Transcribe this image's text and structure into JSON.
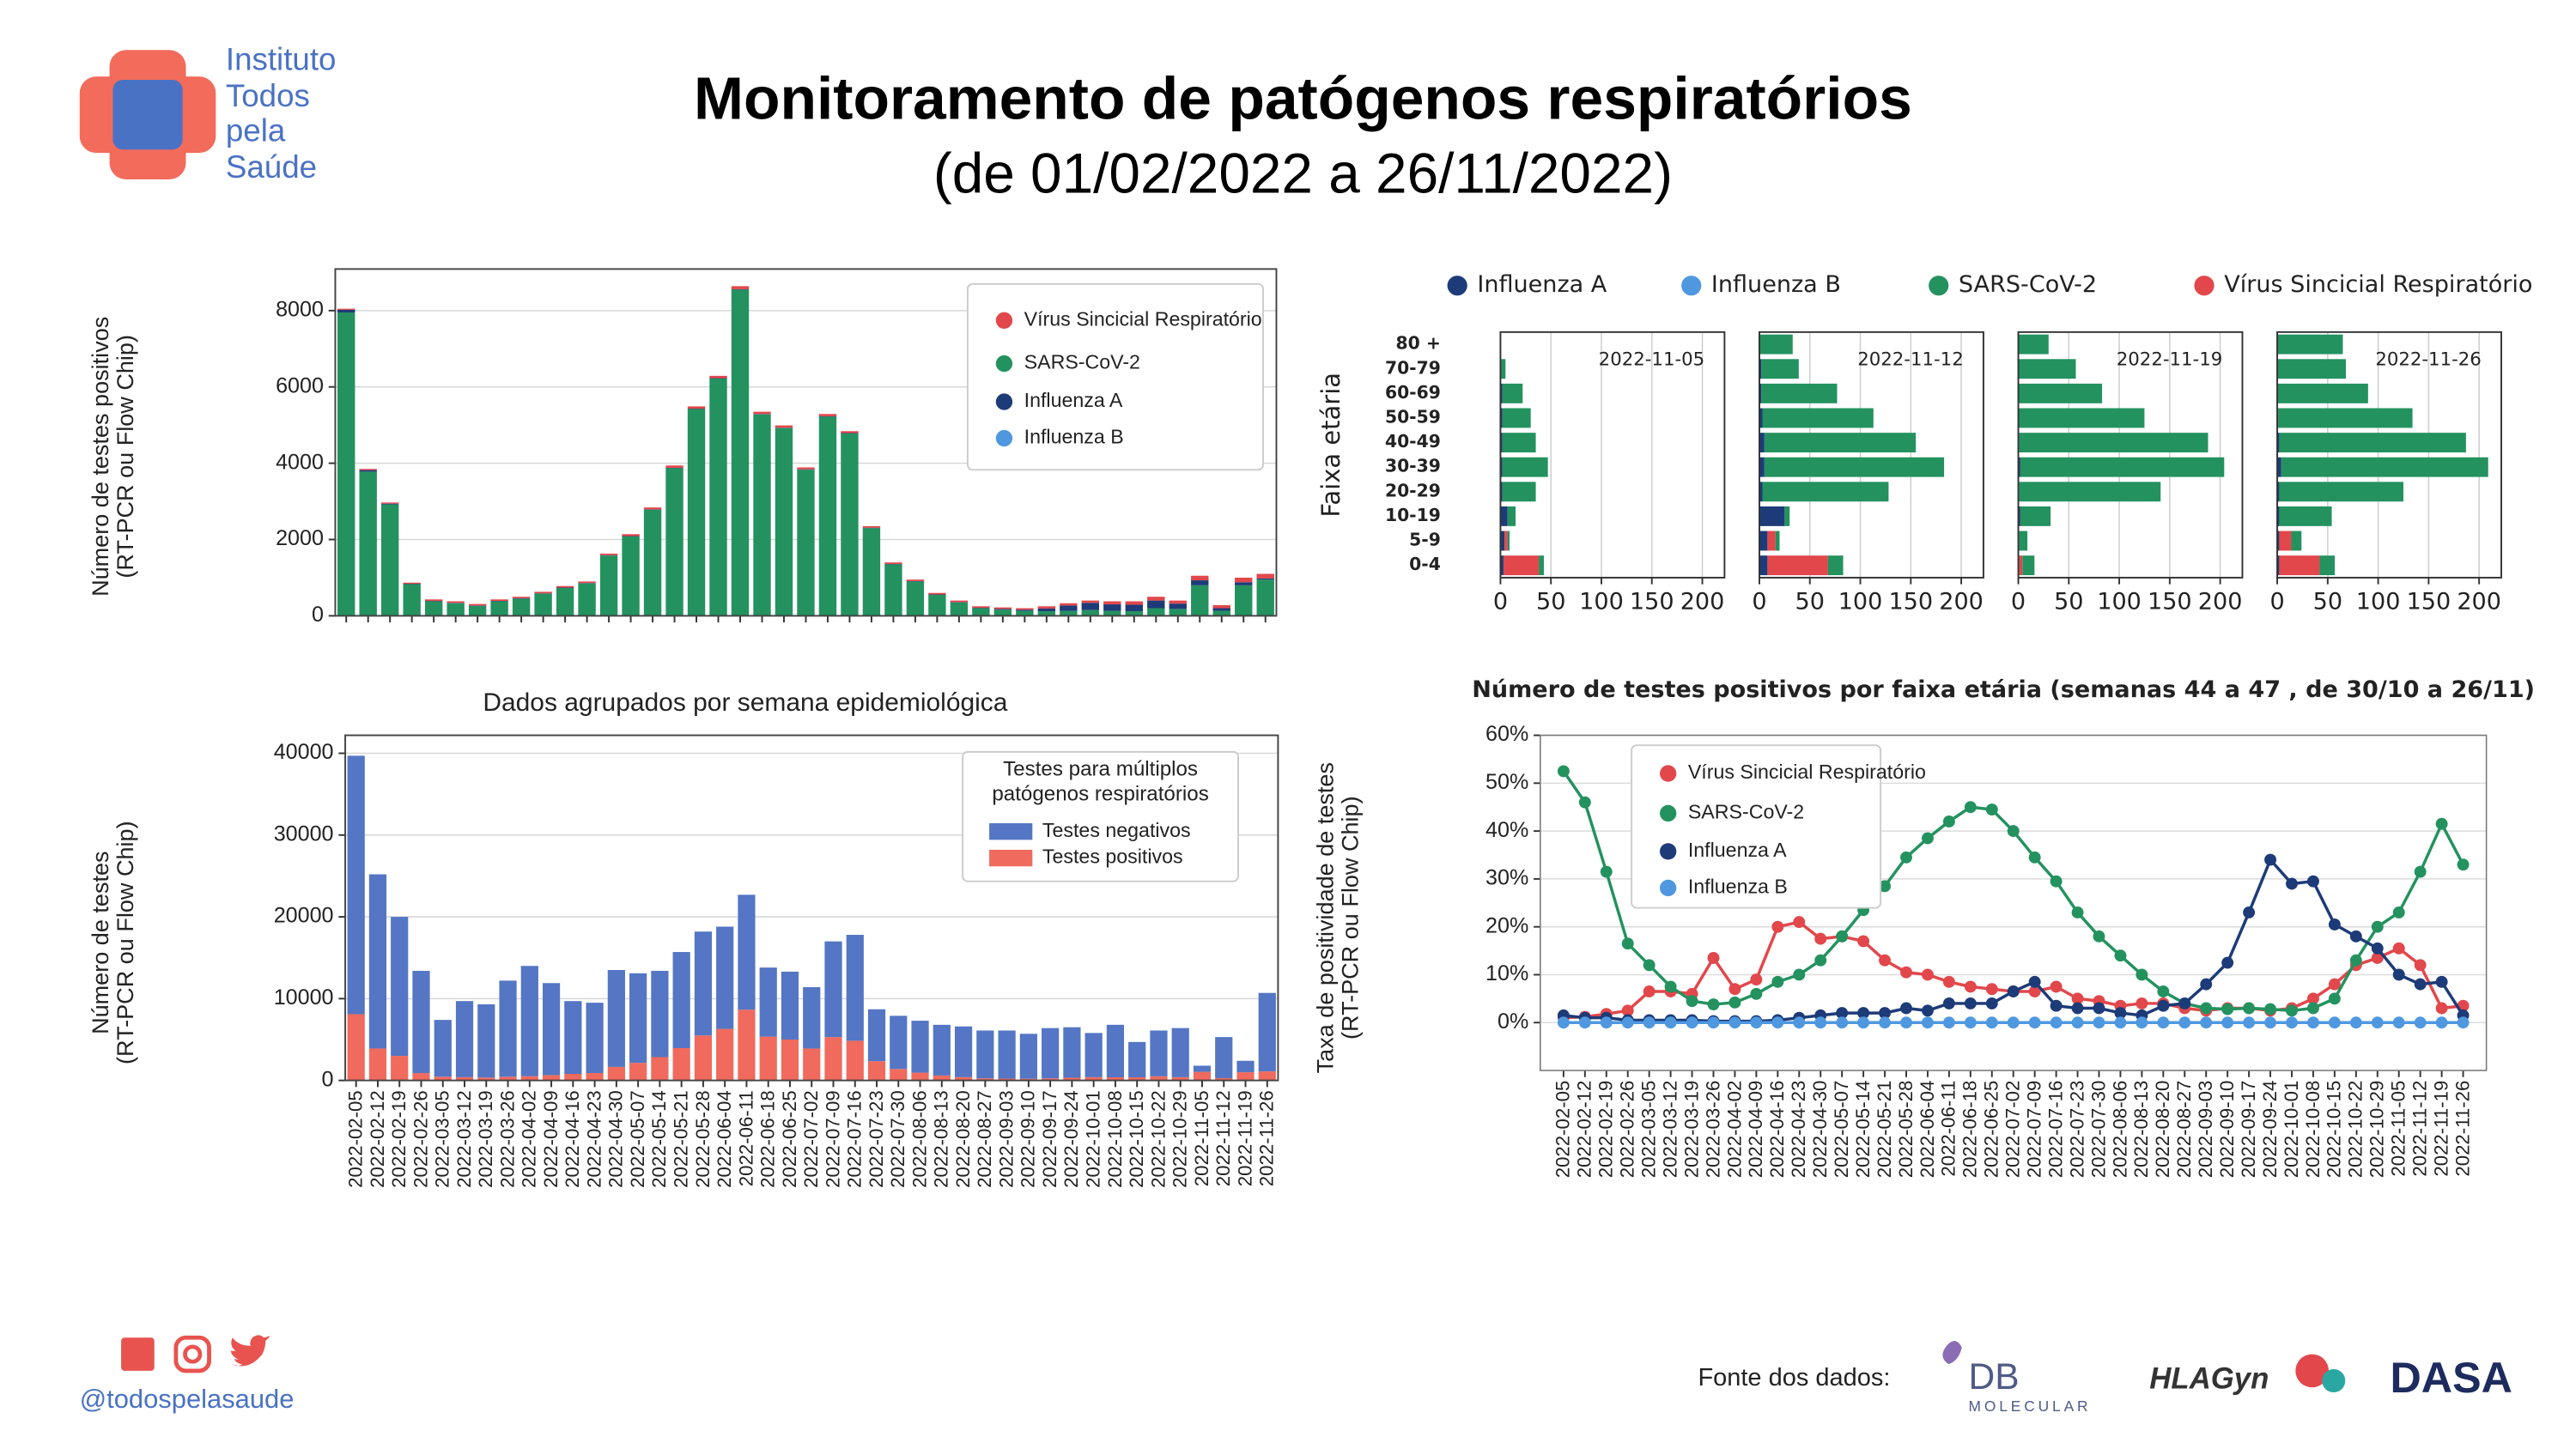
{
  "header": {
    "title": "Monitoramento de patógenos respiratórios",
    "subtitle": "(de 01/02/2022 a 26/11/2022)"
  },
  "logo": {
    "lines": [
      "Instituto",
      "Todos",
      "pela",
      "Saúde"
    ]
  },
  "footer": {
    "handle": "@todospelasaude",
    "source_label": "Fonte dos dados:",
    "sources": [
      "DB",
      "MOLECULAR",
      "HLAGyn",
      "DASA"
    ]
  },
  "chart_data": [
    {
      "type": "bar",
      "ylabel": [
        "Número de testes positivos",
        "(RT-PCR ou Flow Chip)"
      ],
      "ylim": [
        0,
        9090
      ],
      "yticks": [
        0,
        2000,
        4000,
        6000,
        8000
      ],
      "grid": true,
      "legend": "upper right",
      "series": [
        {
          "name": "Vírus Sincicial Respiratório",
          "color": "#e2474b",
          "values": [
            30,
            30,
            30,
            30,
            40,
            40,
            40,
            40,
            40,
            40,
            40,
            40,
            40,
            50,
            50,
            60,
            60,
            60,
            80,
            60,
            60,
            50,
            60,
            50,
            40,
            40,
            40,
            40,
            40,
            40,
            40,
            40,
            60,
            60,
            60,
            80,
            90,
            100,
            80,
            120,
            80,
            120,
            120
          ]
        },
        {
          "name": "SARS-CoV-2",
          "color": "#23925f",
          "values": [
            7950,
            3780,
            2920,
            830,
            380,
            330,
            260,
            380,
            450,
            580,
            730,
            850,
            1580,
            2080,
            2780,
            3870,
            5420,
            6220,
            8550,
            5280,
            4920,
            3830,
            5220,
            4780,
            2300,
            1350,
            900,
            550,
            350,
            200,
            160,
            130,
            120,
            130,
            150,
            130,
            120,
            200,
            180,
            800,
            130,
            800,
            950
          ]
        },
        {
          "name": "Influenza A",
          "color": "#1d3b78",
          "values": [
            70,
            40,
            20,
            10,
            10,
            10,
            10,
            10,
            10,
            10,
            10,
            10,
            10,
            10,
            10,
            10,
            10,
            10,
            10,
            10,
            10,
            10,
            10,
            10,
            10,
            10,
            10,
            10,
            10,
            10,
            20,
            30,
            70,
            140,
            190,
            170,
            170,
            200,
            140,
            130,
            70,
            80,
            30
          ]
        },
        {
          "name": "Influenza B",
          "color": "#4f98e0",
          "values": [
            0,
            0,
            0,
            0,
            0,
            0,
            0,
            0,
            0,
            0,
            0,
            0,
            0,
            0,
            0,
            0,
            0,
            0,
            0,
            0,
            0,
            0,
            0,
            0,
            0,
            0,
            0,
            0,
            0,
            0,
            0,
            0,
            0,
            0,
            0,
            0,
            0,
            0,
            0,
            0,
            0,
            0,
            0
          ]
        }
      ]
    },
    {
      "type": "barh",
      "title": "Número de testes positivos por faixa etária (semanas 44 a 47 , de 30/10 a 26/11)",
      "ylabel": "Faixa etária",
      "categories": [
        "80 +",
        "70-79",
        "60-69",
        "50-59",
        "40-49",
        "30-39",
        "20-29",
        "10-19",
        "5-9",
        "0-4"
      ],
      "xlim": [
        0,
        222
      ],
      "xticks": [
        0,
        50,
        100,
        150,
        200
      ],
      "grid": true,
      "legend": "top",
      "series": [
        {
          "name": "Influenza A",
          "color": "#1d3b78"
        },
        {
          "name": "Influenza B",
          "color": "#4f98e0"
        },
        {
          "name": "SARS-CoV-2",
          "color": "#23925f"
        },
        {
          "name": "Vírus Sincicial Respiratório",
          "color": "#e2474b"
        }
      ],
      "panels": [
        {
          "title": "2022-11-05",
          "values": [
            [
              0,
              1,
              2,
              2,
              2,
              2,
              2,
              7,
              4,
              3
            ],
            [
              0,
              0,
              0,
              0,
              0,
              0,
              0,
              0,
              0,
              0
            ],
            [
              0,
              4,
              20,
              28,
              33,
              45,
              33,
              8,
              2,
              5
            ],
            [
              0,
              0,
              0,
              0,
              0,
              0,
              0,
              0,
              3,
              35
            ]
          ]
        },
        {
          "title": "2022-11-12",
          "values": [
            [
              0,
              2,
              2,
              3,
              5,
              5,
              3,
              25,
              8,
              8
            ],
            [
              0,
              0,
              0,
              0,
              0,
              0,
              0,
              0,
              0,
              0
            ],
            [
              33,
              37,
              75,
              110,
              150,
              178,
              125,
              5,
              4,
              15
            ],
            [
              0,
              0,
              0,
              0,
              0,
              0,
              0,
              0,
              8,
              60
            ]
          ]
        },
        {
          "title": "2022-11-19",
          "values": [
            [
              0,
              0,
              0,
              0,
              1,
              2,
              1,
              2,
              1,
              1
            ],
            [
              0,
              0,
              0,
              0,
              0,
              0,
              0,
              0,
              0,
              0
            ],
            [
              30,
              57,
              83,
              125,
              187,
              202,
              140,
              30,
              8,
              12
            ],
            [
              0,
              0,
              0,
              0,
              0,
              0,
              0,
              0,
              0,
              3
            ]
          ]
        },
        {
          "title": "2022-11-26",
          "values": [
            [
              0,
              0,
              0,
              1,
              2,
              4,
              2,
              2,
              2,
              2
            ],
            [
              0,
              0,
              0,
              0,
              0,
              0,
              0,
              0,
              0,
              0
            ],
            [
              65,
              68,
              90,
              133,
              185,
              205,
              123,
              52,
              10,
              15
            ],
            [
              0,
              0,
              0,
              0,
              0,
              0,
              0,
              0,
              12,
              40
            ]
          ]
        }
      ]
    },
    {
      "type": "bar",
      "title": "Dados agrupados por semana epidemiológica",
      "ylabel": [
        "Número de testes",
        "(RT-PCR ou Flow Chip)"
      ],
      "legend_title": [
        "Testes para múltiplos",
        "patógenos respiratórios"
      ],
      "categories": [
        "2022-02-05",
        "2022-02-12",
        "2022-02-19",
        "2022-02-26",
        "2022-03-05",
        "2022-03-12",
        "2022-03-19",
        "2022-03-26",
        "2022-04-02",
        "2022-04-09",
        "2022-04-16",
        "2022-04-23",
        "2022-04-30",
        "2022-05-07",
        "2022-05-14",
        "2022-05-21",
        "2022-05-28",
        "2022-06-04",
        "2022-06-11",
        "2022-06-18",
        "2022-06-25",
        "2022-07-02",
        "2022-07-09",
        "2022-07-16",
        "2022-07-23",
        "2022-07-30",
        "2022-08-06",
        "2022-08-13",
        "2022-08-20",
        "2022-08-27",
        "2022-09-03",
        "2022-09-10",
        "2022-09-17",
        "2022-09-24",
        "2022-10-01",
        "2022-10-08",
        "2022-10-15",
        "2022-10-22",
        "2022-10-29",
        "2022-11-05",
        "2022-11-12",
        "2022-11-19",
        "2022-11-26"
      ],
      "ylim": [
        0,
        42200
      ],
      "yticks": [
        0,
        10000,
        20000,
        30000,
        40000
      ],
      "grid": true,
      "legend": "upper right",
      "series": [
        {
          "name": "Testes negativos",
          "color": "#5476c4",
          "values": [
            31600,
            21300,
            17000,
            12500,
            6950,
            9300,
            8950,
            11750,
            13480,
            11250,
            8900,
            8600,
            11850,
            10950,
            10550,
            11750,
            12700,
            12500,
            14050,
            8450,
            8300,
            7500,
            11700,
            12950,
            6350,
            6500,
            6350,
            6200,
            6200,
            5850,
            5880,
            5500,
            6150,
            6170,
            5400,
            6420,
            4320,
            5600,
            6000,
            750,
            5020,
            1400,
            9600
          ]
        },
        {
          "name": "Testes positivos",
          "color": "#f06a5e",
          "values": [
            8100,
            3900,
            3000,
            900,
            450,
            400,
            350,
            450,
            520,
            650,
            800,
            900,
            1650,
            2150,
            2850,
            3950,
            5500,
            6300,
            8650,
            5350,
            5000,
            3900,
            5300,
            4850,
            2350,
            1400,
            950,
            600,
            400,
            250,
            220,
            200,
            250,
            330,
            400,
            380,
            380,
            500,
            400,
            1050,
            280,
            1000,
            1100
          ]
        }
      ]
    },
    {
      "type": "line",
      "ylabel": [
        "Taxa de positividade de testes",
        "(RT-PCR ou Flow Chip)"
      ],
      "categories": [
        "2022-02-05",
        "2022-02-12",
        "2022-02-19",
        "2022-02-26",
        "2022-03-05",
        "2022-03-12",
        "2022-03-19",
        "2022-03-26",
        "2022-04-02",
        "2022-04-09",
        "2022-04-16",
        "2022-04-23",
        "2022-04-30",
        "2022-05-07",
        "2022-05-14",
        "2022-05-21",
        "2022-05-28",
        "2022-06-04",
        "2022-06-11",
        "2022-06-18",
        "2022-06-25",
        "2022-07-02",
        "2022-07-09",
        "2022-07-16",
        "2022-07-23",
        "2022-07-30",
        "2022-08-06",
        "2022-08-13",
        "2022-08-20",
        "2022-08-27",
        "2022-09-03",
        "2022-09-10",
        "2022-09-17",
        "2022-09-24",
        "2022-10-01",
        "2022-10-08",
        "2022-10-15",
        "2022-10-22",
        "2022-10-29",
        "2022-11-05",
        "2022-11-12",
        "2022-11-19",
        "2022-11-26"
      ],
      "ylim": [
        -10,
        60
      ],
      "yticks": [
        {
          "value": 0,
          "label": "0%"
        },
        {
          "value": 10,
          "label": "10%"
        },
        {
          "value": 20,
          "label": "20%"
        },
        {
          "value": 30,
          "label": "30%"
        },
        {
          "value": 40,
          "label": "40%"
        },
        {
          "value": 50,
          "label": "50%"
        },
        {
          "value": 60,
          "label": "60%"
        }
      ],
      "grid": true,
      "legend": "upper left",
      "series": [
        {
          "name": "Vírus Sincicial Respiratório",
          "color": "#e2474b",
          "values": [
            1,
            1.2,
            1.8,
            2.5,
            6.5,
            6.5,
            6,
            13.5,
            7,
            9,
            20,
            21,
            17.5,
            18,
            17,
            13,
            10.5,
            10,
            8.5,
            7.5,
            7,
            6.5,
            6.5,
            7.5,
            5,
            4.5,
            3.5,
            4,
            4,
            3,
            2.5,
            3,
            3,
            2.5,
            3,
            5,
            8,
            12,
            13.5,
            15.5,
            12,
            3,
            3.5
          ]
        },
        {
          "name": "SARS-CoV-2",
          "color": "#23925f",
          "values": [
            52.5,
            46,
            31.5,
            16.5,
            12,
            7.5,
            4.5,
            3.8,
            4.2,
            6,
            8.5,
            10,
            13,
            18,
            23.5,
            28.5,
            34.5,
            38.5,
            42,
            45,
            44.5,
            40,
            34.5,
            29.5,
            23,
            18,
            14,
            10,
            6.5,
            4,
            3,
            2.8,
            3,
            2.8,
            2.5,
            3,
            5,
            13,
            20,
            23,
            31.5,
            41.5,
            33
          ]
        },
        {
          "name": "Influenza A",
          "color": "#1d3b78",
          "values": [
            1.5,
            1,
            1,
            0.5,
            0.5,
            0.5,
            0.5,
            0.3,
            0.3,
            0.3,
            0.5,
            1,
            1.5,
            2,
            2,
            2,
            3,
            2.5,
            4,
            4,
            4,
            6.5,
            8.5,
            3.5,
            3,
            3,
            2,
            1.5,
            3.5,
            4,
            8,
            12.5,
            23,
            34,
            29,
            29.5,
            20.5,
            18,
            15.5,
            10,
            8,
            8.5,
            1.5
          ]
        },
        {
          "name": "Influenza B",
          "color": "#4f98e0",
          "values": [
            0,
            0,
            0,
            0,
            0,
            0,
            0,
            0,
            0,
            0,
            0,
            0,
            0,
            0,
            0,
            0,
            0,
            0,
            0,
            0,
            0,
            0,
            0,
            0,
            0,
            0,
            0,
            0,
            0,
            0,
            0,
            0,
            0,
            0,
            0,
            0,
            0,
            0,
            0,
            0,
            0,
            0,
            0
          ]
        }
      ]
    }
  ]
}
